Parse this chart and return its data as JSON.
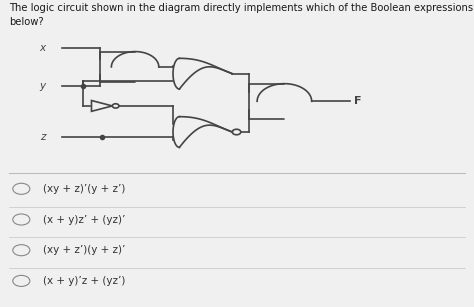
{
  "title_text": "The logic circuit shown in the diagram directly implements which of the Boolean expressions given\nbelow?",
  "background_color": "#f0f0f0",
  "line_color": "#444444",
  "options": [
    "(xy + z)’(y + z’)",
    "(x + y)z’ + (yz)’",
    "(xy + z’)(y + z)’",
    "(x + y)’z + (yz’)"
  ],
  "input_labels": [
    "x",
    "y",
    "z"
  ],
  "output_label": "F",
  "fig_width": 4.74,
  "fig_height": 3.07,
  "dpi": 100
}
